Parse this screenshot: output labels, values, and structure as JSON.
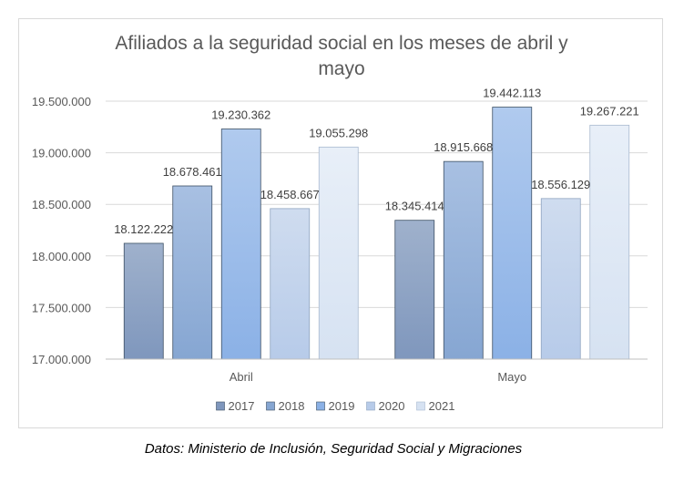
{
  "chart_data": {
    "type": "bar",
    "title_lines": [
      "Afiliados a la seguridad social en los meses de abril y",
      "mayo"
    ],
    "categories": [
      "Abril",
      "Mayo"
    ],
    "series": [
      {
        "name": "2017",
        "values": [
          18122222,
          18345414
        ],
        "labels": [
          "18.122.222",
          "18.345.414"
        ],
        "color_top": "#9fb1cc",
        "color_bottom": "#7f97bd",
        "stroke": "#3c4f63"
      },
      {
        "name": "2018",
        "values": [
          18678461,
          18915668
        ],
        "labels": [
          "18.678.461",
          "18.915.668"
        ],
        "color_top": "#a8c0e2",
        "color_bottom": "#86a6d2",
        "stroke": "#3c4f63"
      },
      {
        "name": "2019",
        "values": [
          19230362,
          19442113
        ],
        "labels": [
          "19.230.362",
          "19.442.113"
        ],
        "color_top": "#b0caee",
        "color_bottom": "#8bb1e6",
        "stroke": "#3c4f63"
      },
      {
        "name": "2020",
        "values": [
          18458667,
          18556129
        ],
        "labels": [
          "18.458.667",
          "18.556.129"
        ],
        "color_top": "#cfdcef",
        "color_bottom": "#b7cbe9",
        "stroke": "#8fa4bf"
      },
      {
        "name": "2021",
        "values": [
          19055298,
          19267221
        ],
        "labels": [
          "19.055.298",
          "19.267.221"
        ],
        "color_top": "#e8eff8",
        "color_bottom": "#d6e2f2",
        "stroke": "#a9bad0"
      }
    ],
    "ylim": [
      17000000,
      19500000
    ],
    "ytick_values": [
      17000000,
      17500000,
      18000000,
      18500000,
      19000000,
      19500000
    ],
    "ytick_labels": [
      "17.000.000",
      "17.500.000",
      "18.000.000",
      "18.500.000",
      "19.000.000",
      "19.500.000"
    ],
    "grid": true,
    "legend_position": "bottom",
    "xlabel": "",
    "ylabel": ""
  },
  "source_note": "Datos: Ministerio de Inclusión, Seguridad Social y Migraciones",
  "colors": {
    "title": "#595959",
    "axis_text": "#595959",
    "grid": "#d9d9d9",
    "data_label": "#404040"
  }
}
